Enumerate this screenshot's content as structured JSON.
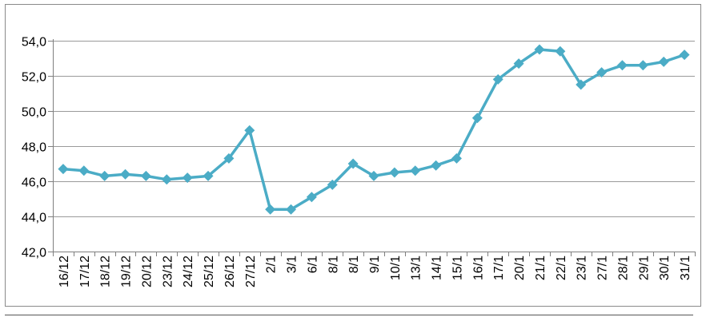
{
  "chart_data": {
    "type": "line",
    "title": "",
    "xlabel": "",
    "ylabel": "",
    "ylim": [
      42.0,
      54.0
    ],
    "yticks": [
      "42,0",
      "44,0",
      "46,0",
      "48,0",
      "50,0",
      "52,0",
      "54,0"
    ],
    "grid": true,
    "legend": "none",
    "line_color": "#4BACC6",
    "categories": [
      "16/12",
      "17/12",
      "18/12",
      "19/12",
      "20/12",
      "23/12",
      "24/12",
      "25/12",
      "26/12",
      "27/12",
      "2/1",
      "3/1",
      "6/1",
      "8/1",
      "8/1",
      "9/1",
      "10/1",
      "13/1",
      "14/1",
      "15/1",
      "16/1",
      "17/1",
      "20/1",
      "21/1",
      "22/1",
      "23/1",
      "27/1",
      "28/1",
      "29/1",
      "30/1",
      "31/1"
    ],
    "series": [
      {
        "values": [
          46.7,
          46.6,
          46.3,
          46.4,
          46.3,
          46.1,
          46.2,
          46.3,
          47.3,
          48.9,
          44.4,
          44.4,
          45.1,
          45.8,
          47.0,
          46.3,
          46.5,
          46.6,
          46.9,
          47.3,
          49.6,
          51.8,
          52.7,
          53.5,
          53.4,
          51.5,
          52.2,
          52.6,
          52.6,
          52.8,
          53.2
        ]
      }
    ]
  }
}
